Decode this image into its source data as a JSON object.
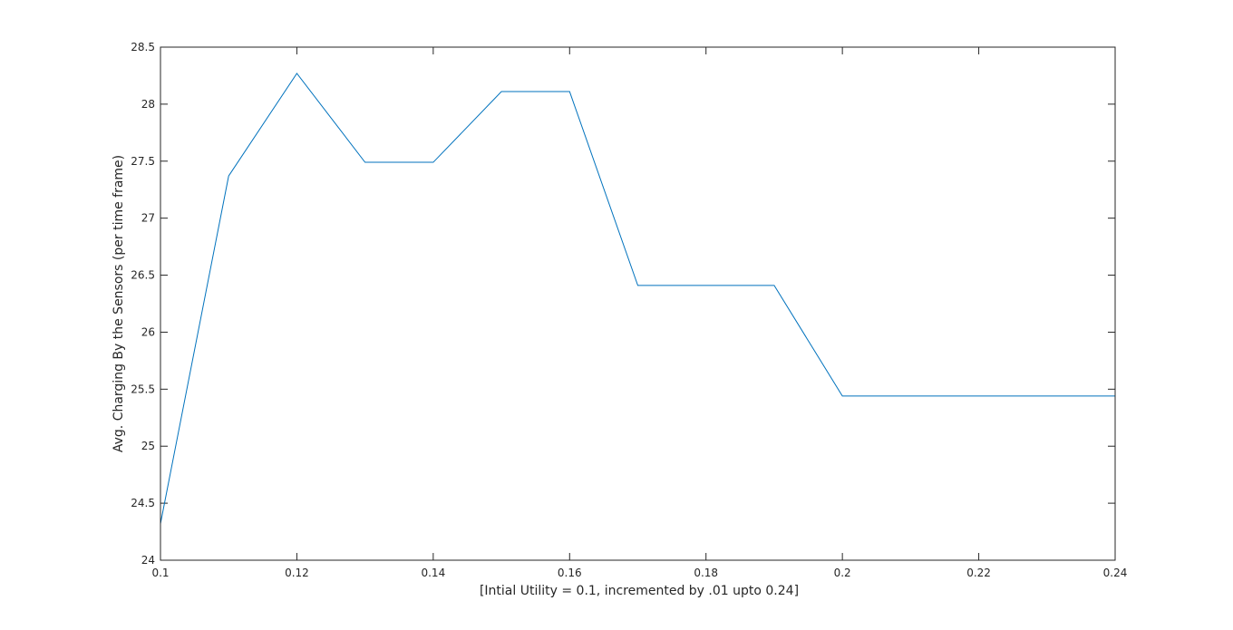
{
  "chart_data": {
    "type": "line",
    "title": "",
    "xlabel": "[Intial Utility = 0.1, incremented by .01 upto 0.24]",
    "ylabel": "Avg. Charging By the Sensors (per time frame)",
    "xlim": [
      0.1,
      0.24
    ],
    "ylim": [
      24,
      28.5
    ],
    "xticks": [
      "0.1",
      "0.12",
      "0.14",
      "0.16",
      "0.18",
      "0.2",
      "0.22",
      "0.24"
    ],
    "yticks": [
      "24",
      "24.5",
      "25",
      "25.5",
      "26",
      "26.5",
      "27",
      "27.5",
      "28",
      "28.5"
    ],
    "grid": false,
    "line_color": "#0072BD",
    "series": [
      {
        "x": [
          0.1,
          0.11,
          0.12,
          0.13,
          0.14,
          0.15,
          0.16,
          0.17,
          0.18,
          0.19,
          0.2,
          0.21,
          0.22,
          0.23,
          0.24
        ],
        "y": [
          24.32,
          27.37,
          28.27,
          27.49,
          27.49,
          28.11,
          28.11,
          26.41,
          26.41,
          26.41,
          25.44,
          25.44,
          25.44,
          25.44,
          25.44
        ]
      }
    ]
  }
}
